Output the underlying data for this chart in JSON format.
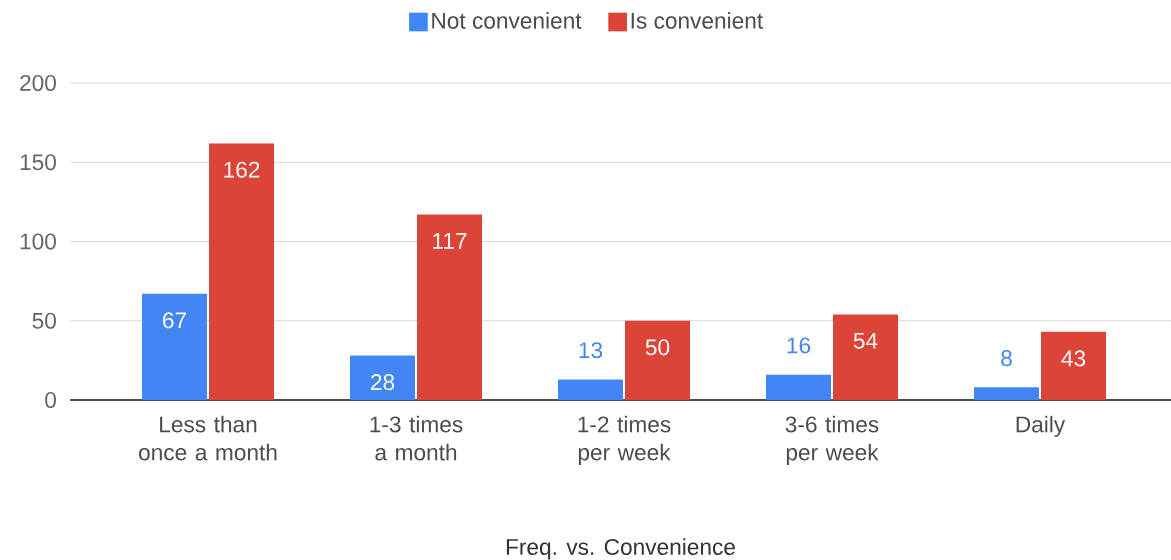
{
  "chart_data": {
    "type": "bar",
    "xlabel": "Freq. vs. Convenience",
    "categories": [
      "Less than once a month",
      "1-3 times a month",
      "1-2 times per week",
      "3-6 times per week",
      "Daily"
    ],
    "series": [
      {
        "name": "Not convenient",
        "color": "#4285f4",
        "values": [
          67,
          28,
          13,
          16,
          8
        ]
      },
      {
        "name": "Is convenient",
        "color": "#db4437",
        "values": [
          162,
          117,
          50,
          54,
          43
        ]
      }
    ],
    "ylim": [
      0,
      200
    ],
    "yticks": [
      0,
      50,
      100,
      150,
      200
    ],
    "grid": "y",
    "legend": "top",
    "data_labels": true
  }
}
